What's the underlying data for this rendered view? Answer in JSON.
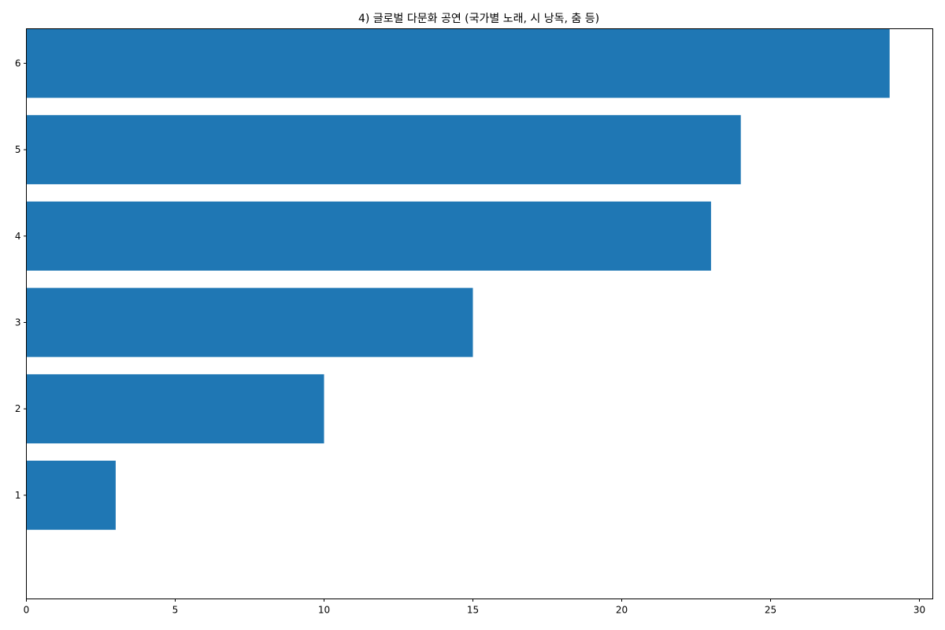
{
  "chart_data": {
    "type": "bar",
    "orientation": "horizontal",
    "title": "4) 글로벌 다문화 공연 (국가별 노래, 시 낭독, 춤 등)",
    "xlabel": "",
    "ylabel": "",
    "categories": [
      "1",
      "2",
      "3",
      "4",
      "5",
      "6"
    ],
    "values": [
      3,
      10,
      15,
      23,
      24,
      29
    ],
    "xlim": [
      0,
      30.45
    ],
    "xticks": [
      0,
      5,
      10,
      15,
      20,
      25,
      30
    ],
    "xtick_labels": [
      "0",
      "5",
      "10",
      "15",
      "20",
      "25",
      "30"
    ],
    "grid": false,
    "legend": "none",
    "colors": {
      "bar": "#1f77b4",
      "axis": "#000000",
      "background": "#ffffff"
    }
  }
}
